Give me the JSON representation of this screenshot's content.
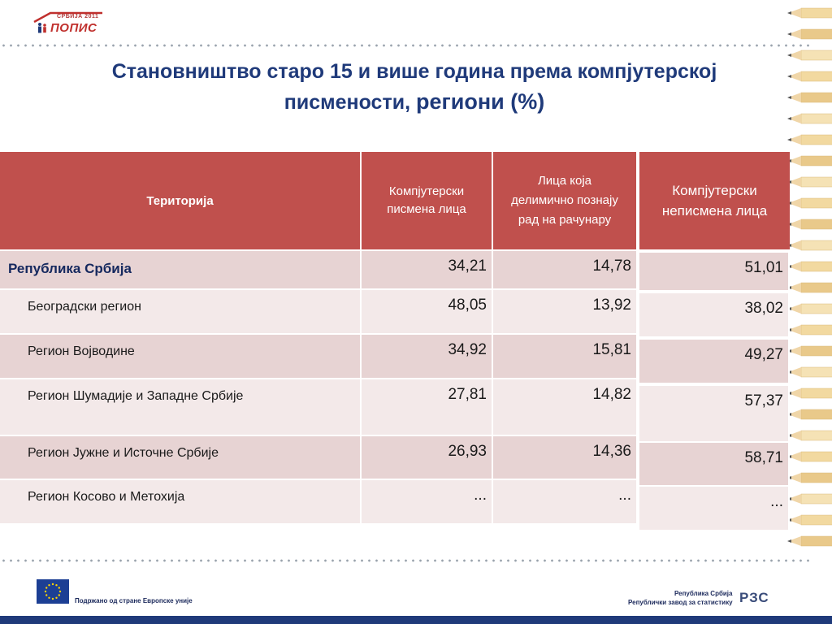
{
  "logo": {
    "year": "СРБИЈА 2011",
    "word": "ПОПИС"
  },
  "title": {
    "line1": "Становништво старо 15 и више година према компјутерској",
    "line2a": "писмености, ",
    "line2b": "региони (%)"
  },
  "table": {
    "headers": [
      "Територија",
      "Компјутерски писмена лица",
      "Лица која делимично познају рад на рачунару",
      "Компјутерски неписмена лица"
    ],
    "rows": [
      {
        "label": "Република Србија",
        "v1": "34,21",
        "v2": "14,78",
        "v3": "51,01"
      },
      {
        "label": "Београдски регион",
        "v1": "48,05",
        "v2": "13,92",
        "v3": "38,02"
      },
      {
        "label": "Регион Војводине",
        "v1": "34,92",
        "v2": "15,81",
        "v3": "49,27"
      },
      {
        "label": "Регион Шумадије и Западне Србије",
        "v1": "27,81",
        "v2": "14,82",
        "v3": "57,37"
      },
      {
        "label": "Регион Јужне и Источне Србије",
        "v1": "26,93",
        "v2": "14,36",
        "v3": "58,71"
      },
      {
        "label": "Регион Косово и Метохија",
        "v1": "...",
        "v2": "...",
        "v3": "..."
      }
    ]
  },
  "footer": {
    "eu_text": "Подржано од стране Европске уније",
    "rzs_line1": "Република Србија",
    "rzs_line2": "Републички завод за статистику",
    "rzs_logo": "РЗС"
  },
  "colors": {
    "header_red": "#c0504d",
    "row_pink": "#e7d3d3",
    "row_light": "#f3e9e9",
    "title_blue": "#1f3a7a"
  }
}
